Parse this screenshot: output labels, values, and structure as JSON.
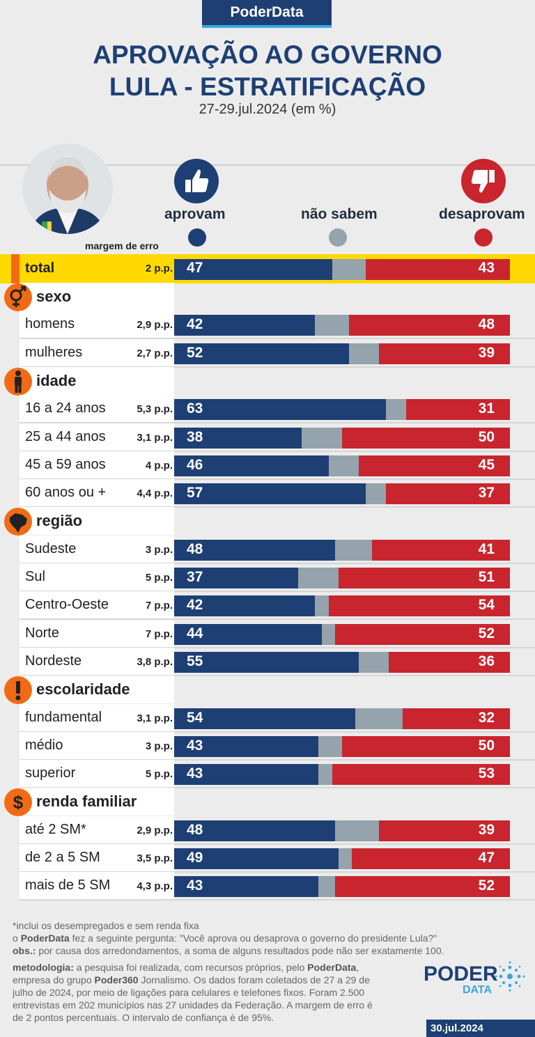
{
  "brand": "PoderData",
  "title_line1": "APROVAÇÃO AO GOVERNO",
  "title_line2": "LULA - ESTRATIFICAÇÃO",
  "subtitle": "27-29.jul.2024 (em %)",
  "legend": {
    "approve": "aprovam",
    "dont_know": "não sabem",
    "disapprove": "desaprovam",
    "margin_header": "margem de erro"
  },
  "colors": {
    "approve": "#1d3f74",
    "dont_know": "#94a3ac",
    "disapprove": "#c8252e",
    "highlight": "#ffd900",
    "accent": "#f26a14"
  },
  "groups": [
    {
      "key": "sexo",
      "label": "sexo",
      "icon": "gender-icon"
    },
    {
      "key": "idade",
      "label": "idade",
      "icon": "person-icon"
    },
    {
      "key": "regiao",
      "label": "região",
      "icon": "brazil-map-icon"
    },
    {
      "key": "escolaridade",
      "label": "escolaridade",
      "icon": "exclamation-icon"
    },
    {
      "key": "renda",
      "label": "renda familiar",
      "icon": "dollar-icon"
    }
  ],
  "chart_data": {
    "type": "bar",
    "stacked": true,
    "series_names": [
      "aprovam",
      "não sabem",
      "desaprovam"
    ],
    "rows": [
      {
        "label": "total",
        "margin": "2 p.p.",
        "approve": 47,
        "disapprove": 43,
        "group": null
      },
      {
        "label": "homens",
        "margin": "2,9 p.p.",
        "approve": 42,
        "disapprove": 48,
        "group": "sexo"
      },
      {
        "label": "mulheres",
        "margin": "2,7 p.p.",
        "approve": 52,
        "disapprove": 39,
        "group": "sexo"
      },
      {
        "label": "16 a 24 anos",
        "margin": "5,3 p.p.",
        "approve": 63,
        "disapprove": 31,
        "group": "idade"
      },
      {
        "label": "25 a 44 anos",
        "margin": "3,1 p.p.",
        "approve": 38,
        "disapprove": 50,
        "group": "idade"
      },
      {
        "label": "45 a 59 anos",
        "margin": "4 p.p.",
        "approve": 46,
        "disapprove": 45,
        "group": "idade"
      },
      {
        "label": "60 anos ou +",
        "margin": "4,4 p.p.",
        "approve": 57,
        "disapprove": 37,
        "group": "idade"
      },
      {
        "label": "Sudeste",
        "margin": "3 p.p.",
        "approve": 48,
        "disapprove": 41,
        "group": "regiao"
      },
      {
        "label": "Sul",
        "margin": "5 p.p.",
        "approve": 37,
        "disapprove": 51,
        "group": "regiao"
      },
      {
        "label": "Centro-Oeste",
        "margin": "7 p.p.",
        "approve": 42,
        "disapprove": 54,
        "group": "regiao"
      },
      {
        "label": "Norte",
        "margin": "7 p.p.",
        "approve": 44,
        "disapprove": 52,
        "group": "regiao"
      },
      {
        "label": "Nordeste",
        "margin": "3,8 p.p.",
        "approve": 55,
        "disapprove": 36,
        "group": "regiao"
      },
      {
        "label": "fundamental",
        "margin": "3,1 p.p.",
        "approve": 54,
        "disapprove": 32,
        "group": "escolaridade"
      },
      {
        "label": "médio",
        "margin": "3 p.p.",
        "approve": 43,
        "disapprove": 50,
        "group": "escolaridade"
      },
      {
        "label": "superior",
        "margin": "5 p.p.",
        "approve": 43,
        "disapprove": 53,
        "group": "escolaridade"
      },
      {
        "label": "até 2 SM*",
        "margin": "2,9 p.p.",
        "approve": 48,
        "disapprove": 39,
        "group": "renda"
      },
      {
        "label": "de 2 a 5 SM",
        "margin": "3,5 p.p.",
        "approve": 49,
        "disapprove": 47,
        "group": "renda"
      },
      {
        "label": "mais de 5 SM",
        "margin": "4,3 p.p.",
        "approve": 43,
        "disapprove": 52,
        "group": "renda"
      }
    ]
  },
  "footnotes": {
    "note_income": "*inclui os desempregados e sem renda fixa",
    "question_prefix": "o ",
    "question_brand": "PoderData",
    "question_text": " fez a seguinte pergunta: \"Você aprova ou desaprova o governo do presidente Lula?\"",
    "obs_label": "obs.:",
    "obs_text": " por causa dos arredondamentos, a soma de alguns resultados pode não ser exatamente 100.",
    "method_label": "metodologia:",
    "method_text_1": " a pesquisa foi realizada, com recursos próprios, pelo ",
    "method_brand": "PoderData",
    "method_text_2": ",",
    "method_line2_a": "empresa do grupo ",
    "method_line2_brand": "Poder360",
    "method_line2_b": " Jornalismo. Os dados foram coletados de 27 a 29 de",
    "method_line3": "julho de 2024, por meio de ligações para celulares e telefones fixos. Foram 2.500",
    "method_line4": "entrevistas em 202 municípios nas 27 unidades da Federação. A margem de erro é",
    "method_line5": "de 2 pontos percentuais. O intervalo de confiança é de 95%."
  },
  "logo": {
    "word1": "PODER",
    "word2": "DATA"
  },
  "date": "30.jul.2024"
}
